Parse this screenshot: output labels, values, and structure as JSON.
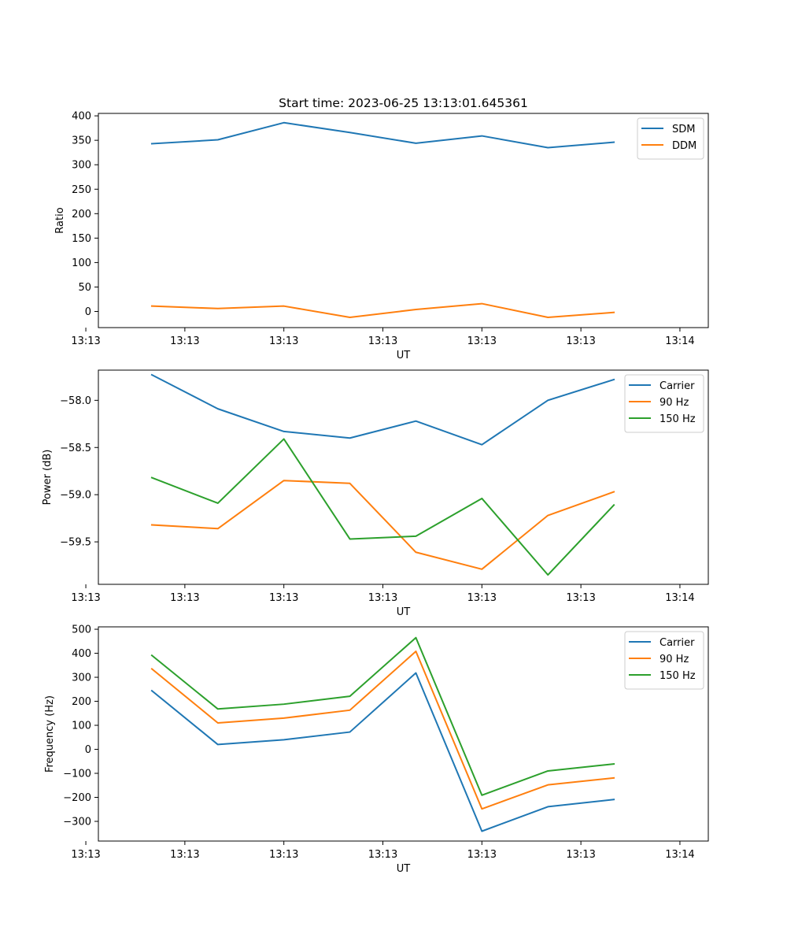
{
  "figure": {
    "title": "Start time: 2023-06-25 13:13:01.645361"
  },
  "colors": {
    "blue": "#1f77b4",
    "orange": "#ff7f0e",
    "green": "#2ca02c"
  },
  "chart_data": [
    {
      "type": "line",
      "title": "Start time: 2023-06-25 13:13:01.645361",
      "xlabel": "UT",
      "ylabel": "Ratio",
      "x": [
        1,
        2,
        3,
        4,
        5,
        6,
        7,
        8
      ],
      "xlim": [
        0.19,
        9.43
      ],
      "x_ticks": [
        {
          "x": 0.0,
          "label": "13:13"
        },
        {
          "x": 1.5,
          "label": "13:13"
        },
        {
          "x": 3.0,
          "label": "13:13"
        },
        {
          "x": 4.5,
          "label": "13:13"
        },
        {
          "x": 6.0,
          "label": "13:13"
        },
        {
          "x": 7.5,
          "label": "13:13"
        },
        {
          "x": 9.0,
          "label": "13:14"
        }
      ],
      "ylim": [
        -33,
        405
      ],
      "y_ticks": [
        {
          "y": 0,
          "label": "0"
        },
        {
          "y": 50,
          "label": "50"
        },
        {
          "y": 100,
          "label": "100"
        },
        {
          "y": 150,
          "label": "150"
        },
        {
          "y": 200,
          "label": "200"
        },
        {
          "y": 250,
          "label": "250"
        },
        {
          "y": 300,
          "label": "300"
        },
        {
          "y": 350,
          "label": "350"
        },
        {
          "y": 400,
          "label": "400"
        }
      ],
      "legend": "top-right",
      "series": [
        {
          "name": "SDM",
          "color": "#1f77b4",
          "values": [
            343,
            351,
            386,
            366,
            344,
            359,
            335,
            346
          ]
        },
        {
          "name": "DDM",
          "color": "#ff7f0e",
          "values": [
            11,
            6,
            11,
            -12,
            4,
            16,
            -12,
            -2
          ]
        }
      ]
    },
    {
      "type": "line",
      "title": "",
      "xlabel": "UT",
      "ylabel": "Power (dB)",
      "x": [
        1,
        2,
        3,
        4,
        5,
        6,
        7,
        8
      ],
      "xlim": [
        0.19,
        9.43
      ],
      "x_ticks": [
        {
          "x": 0.0,
          "label": "13:13"
        },
        {
          "x": 1.5,
          "label": "13:13"
        },
        {
          "x": 3.0,
          "label": "13:13"
        },
        {
          "x": 4.5,
          "label": "13:13"
        },
        {
          "x": 6.0,
          "label": "13:13"
        },
        {
          "x": 7.5,
          "label": "13:13"
        },
        {
          "x": 9.0,
          "label": "13:14"
        }
      ],
      "ylim": [
        -59.95,
        -57.68
      ],
      "y_ticks": [
        {
          "y": -59.5,
          "label": "−59.5"
        },
        {
          "y": -59.0,
          "label": "−59.0"
        },
        {
          "y": -58.5,
          "label": "−58.5"
        },
        {
          "y": -58.0,
          "label": "−58.0"
        }
      ],
      "legend": "top-right",
      "series": [
        {
          "name": "Carrier",
          "color": "#1f77b4",
          "values": [
            -57.73,
            -58.09,
            -58.33,
            -58.4,
            -58.22,
            -58.47,
            -58.0,
            -57.78
          ]
        },
        {
          "name": "90 Hz",
          "color": "#ff7f0e",
          "values": [
            -59.32,
            -59.36,
            -58.85,
            -58.88,
            -59.61,
            -59.79,
            -59.22,
            -58.97
          ]
        },
        {
          "name": "150 Hz",
          "color": "#2ca02c",
          "values": [
            -58.82,
            -59.09,
            -58.41,
            -59.47,
            -59.44,
            -59.04,
            -59.85,
            -59.11
          ]
        }
      ]
    },
    {
      "type": "line",
      "title": "",
      "xlabel": "UT",
      "ylabel": "Frequency (Hz)",
      "x": [
        1,
        2,
        3,
        4,
        5,
        6,
        7,
        8
      ],
      "xlim": [
        0.19,
        9.43
      ],
      "x_ticks": [
        {
          "x": 0.0,
          "label": "13:13"
        },
        {
          "x": 1.5,
          "label": "13:13"
        },
        {
          "x": 3.0,
          "label": "13:13"
        },
        {
          "x": 4.5,
          "label": "13:13"
        },
        {
          "x": 6.0,
          "label": "13:13"
        },
        {
          "x": 7.5,
          "label": "13:13"
        },
        {
          "x": 9.0,
          "label": "13:14"
        }
      ],
      "ylim": [
        -382,
        510
      ],
      "y_ticks": [
        {
          "y": -300,
          "label": "−300"
        },
        {
          "y": -200,
          "label": "−200"
        },
        {
          "y": -100,
          "label": "−100"
        },
        {
          "y": 0,
          "label": "0"
        },
        {
          "y": 100,
          "label": "100"
        },
        {
          "y": 200,
          "label": "200"
        },
        {
          "y": 300,
          "label": "300"
        },
        {
          "y": 400,
          "label": "400"
        },
        {
          "y": 500,
          "label": "500"
        }
      ],
      "legend": "top-right",
      "series": [
        {
          "name": "Carrier",
          "color": "#1f77b4",
          "values": [
            244,
            20,
            40,
            72,
            318,
            -341,
            -239,
            -209
          ]
        },
        {
          "name": "90 Hz",
          "color": "#ff7f0e",
          "values": [
            335,
            110,
            130,
            163,
            408,
            -248,
            -148,
            -119
          ]
        },
        {
          "name": "150 Hz",
          "color": "#2ca02c",
          "values": [
            391,
            168,
            188,
            221,
            465,
            -191,
            -90,
            -61
          ]
        }
      ]
    }
  ]
}
